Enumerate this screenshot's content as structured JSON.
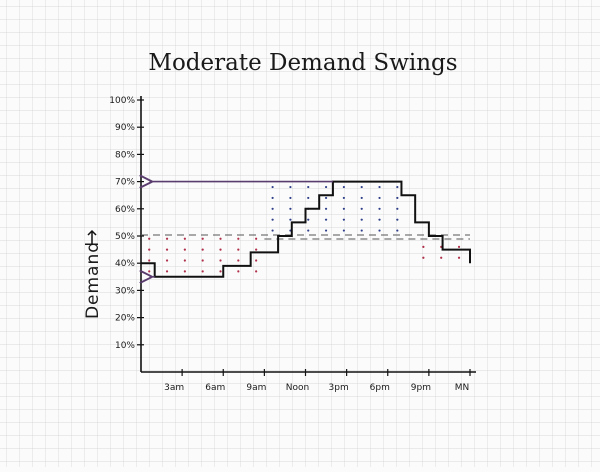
{
  "chart_data": {
    "type": "line",
    "title": "Moderate Demand Swings",
    "ylabel": "Demand",
    "xlabel": "",
    "ylim": [
      0,
      100
    ],
    "yticks": [
      "10%",
      "20%",
      "30%",
      "40%",
      "50%",
      "60%",
      "70%",
      "80%",
      "90%",
      "100%"
    ],
    "xticks": [
      {
        "label": "3am",
        "x": 3
      },
      {
        "label": "6am",
        "x": 6
      },
      {
        "label": "9am",
        "x": 9
      },
      {
        "label": "Noon",
        "x": 12
      },
      {
        "label": "3pm",
        "x": 15
      },
      {
        "label": "6pm",
        "x": 18
      },
      {
        "label": "9pm",
        "x": 21
      },
      {
        "label": "MN",
        "x": 24
      }
    ],
    "xlim": [
      0,
      24
    ],
    "series": [
      {
        "style": "step",
        "x": [
          0,
          1,
          6,
          8,
          10,
          11,
          12,
          13,
          14,
          19,
          20,
          21,
          22,
          24
        ],
        "y": [
          40,
          35,
          39,
          44,
          50,
          55,
          60,
          65,
          70,
          65,
          55,
          50,
          45,
          40
        ]
      }
    ],
    "reference_lines": [
      {
        "y": 50,
        "style": "dashed",
        "x_range": [
          0,
          24
        ]
      },
      {
        "y": 50,
        "style": "dashed",
        "x_range": [
          9,
          24
        ]
      }
    ],
    "annotations": [
      {
        "type": "arrow",
        "y": 70,
        "from_x": 14,
        "to_x": 0.2,
        "color": "#5a3d6e"
      },
      {
        "type": "arrow",
        "y": 35,
        "from_x": 1,
        "to_x": 0.2,
        "color": "#5a3d6e"
      }
    ],
    "shaded_regions": [
      {
        "label": "",
        "color": "#b0304a",
        "y_range": [
          35,
          50
        ],
        "x_range": [
          0,
          9
        ]
      },
      {
        "label": "",
        "color": "#2f3f8a",
        "y_range": [
          50,
          70
        ],
        "x_range": [
          9,
          20
        ]
      },
      {
        "label": "",
        "color": "#b0304a",
        "y_range": [
          40,
          50
        ],
        "x_range": [
          20,
          24
        ]
      }
    ],
    "grid": true,
    "colors": {
      "line": "#111111",
      "arrow": "#5a3d6e",
      "grid": "#c9c9c9"
    }
  }
}
